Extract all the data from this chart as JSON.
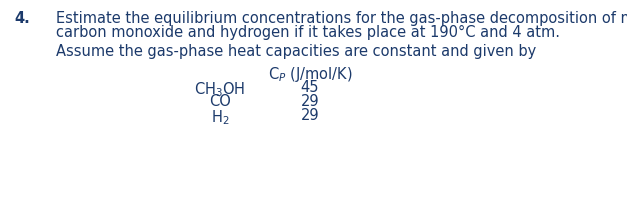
{
  "number": "4.",
  "line1": "Estimate the equilibrium concentrations for the gas-phase decomposition of methanol to",
  "line2": "carbon monoxide and hydrogen if it takes place at 190°C and 4 atm.",
  "line3": "Assume the gas-phase heat capacities are constant and given by",
  "table_header_math": "C$_P$ (J/mol/K)",
  "species_math": [
    "CH$_3$OH",
    "CO",
    "H$_2$"
  ],
  "cp_values": [
    "45",
    "29",
    "29"
  ],
  "bg_color": "#ffffff",
  "text_color": "#1c3a6b",
  "font_size": 10.5,
  "bold_num": true
}
